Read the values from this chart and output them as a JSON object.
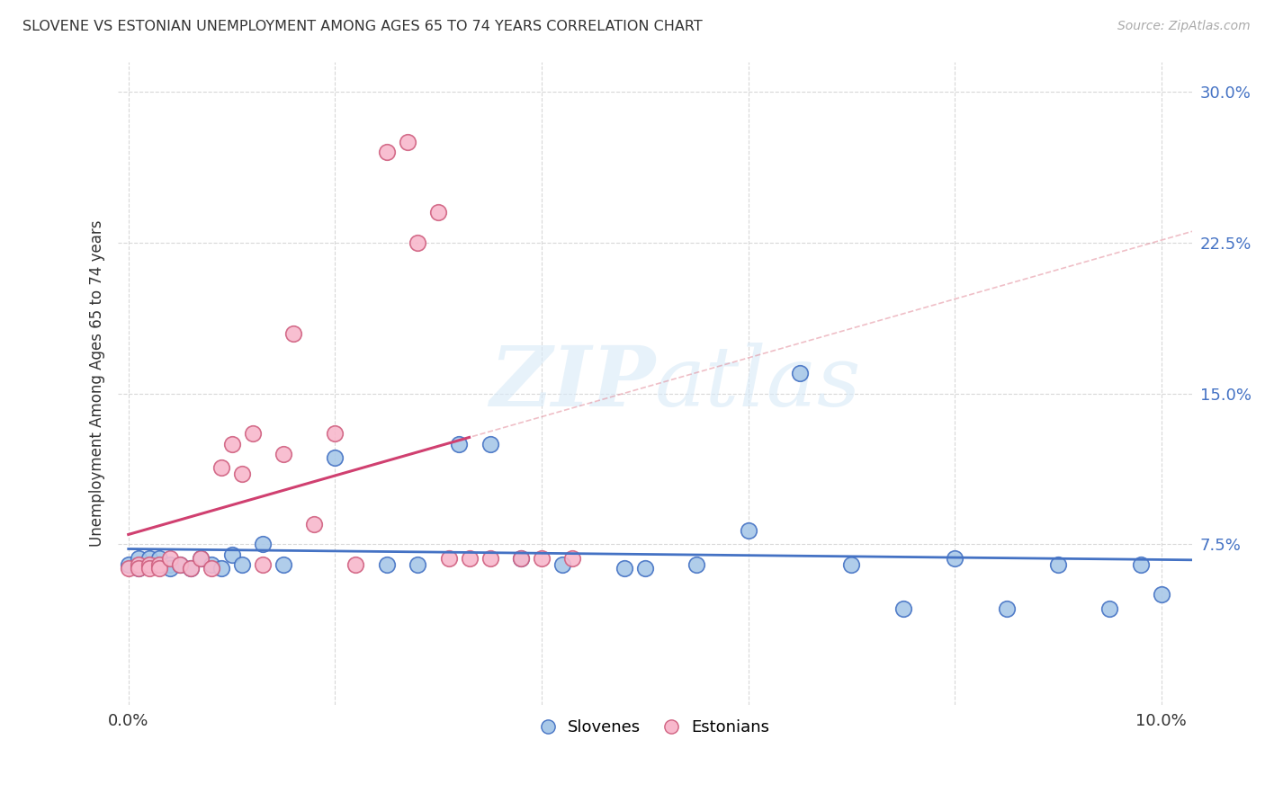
{
  "title": "SLOVENE VS ESTONIAN UNEMPLOYMENT AMONG AGES 65 TO 74 YEARS CORRELATION CHART",
  "source": "Source: ZipAtlas.com",
  "ylabel": "Unemployment Among Ages 65 to 74 years",
  "xlim": [
    -0.001,
    0.103
  ],
  "ylim": [
    -0.005,
    0.315
  ],
  "ytick_vals": [
    0.075,
    0.15,
    0.225,
    0.3
  ],
  "ytick_labels": [
    "7.5%",
    "15.0%",
    "22.5%",
    "30.0%"
  ],
  "xtick_vals": [
    0.0,
    0.02,
    0.04,
    0.06,
    0.08,
    0.1
  ],
  "xtick_labels": [
    "0.0%",
    "",
    "",
    "",
    "",
    "10.0%"
  ],
  "slovenes_color": "#a8c8e8",
  "slovenes_edge_color": "#4472c4",
  "estonians_color": "#f8b8cc",
  "estonians_edge_color": "#d06080",
  "slovenes_line_color": "#4472c4",
  "estonians_line_color": "#d04070",
  "dashed_line_color": "#e08090",
  "grid_color": "#d8d8d8",
  "background_color": "#ffffff",
  "watermark_color": "#ddeeff",
  "legend_text_color": "#4472c4",
  "slovenes_x": [
    0.0,
    0.001,
    0.001,
    0.002,
    0.002,
    0.003,
    0.003,
    0.004,
    0.004,
    0.005,
    0.006,
    0.007,
    0.008,
    0.009,
    0.01,
    0.011,
    0.013,
    0.015,
    0.02,
    0.025,
    0.028,
    0.032,
    0.035,
    0.038,
    0.042,
    0.048,
    0.05,
    0.055,
    0.06,
    0.065,
    0.07,
    0.075,
    0.08,
    0.085,
    0.09,
    0.095,
    0.098,
    0.1
  ],
  "slovenes_y": [
    0.065,
    0.063,
    0.068,
    0.065,
    0.068,
    0.065,
    0.068,
    0.065,
    0.063,
    0.065,
    0.063,
    0.068,
    0.065,
    0.063,
    0.07,
    0.065,
    0.075,
    0.065,
    0.118,
    0.065,
    0.065,
    0.125,
    0.125,
    0.068,
    0.065,
    0.063,
    0.063,
    0.065,
    0.082,
    0.16,
    0.065,
    0.043,
    0.068,
    0.043,
    0.065,
    0.043,
    0.065,
    0.05
  ],
  "estonians_x": [
    0.0,
    0.001,
    0.001,
    0.002,
    0.002,
    0.003,
    0.003,
    0.004,
    0.005,
    0.006,
    0.007,
    0.008,
    0.009,
    0.01,
    0.011,
    0.012,
    0.013,
    0.015,
    0.016,
    0.018,
    0.02,
    0.022,
    0.025,
    0.027,
    0.028,
    0.03,
    0.031,
    0.033,
    0.035,
    0.038,
    0.04,
    0.043
  ],
  "estonians_y": [
    0.063,
    0.065,
    0.063,
    0.065,
    0.063,
    0.065,
    0.063,
    0.068,
    0.065,
    0.063,
    0.068,
    0.063,
    0.113,
    0.125,
    0.11,
    0.13,
    0.065,
    0.12,
    0.18,
    0.085,
    0.13,
    0.065,
    0.27,
    0.275,
    0.225,
    0.24,
    0.068,
    0.068,
    0.068,
    0.068,
    0.068,
    0.068
  ]
}
